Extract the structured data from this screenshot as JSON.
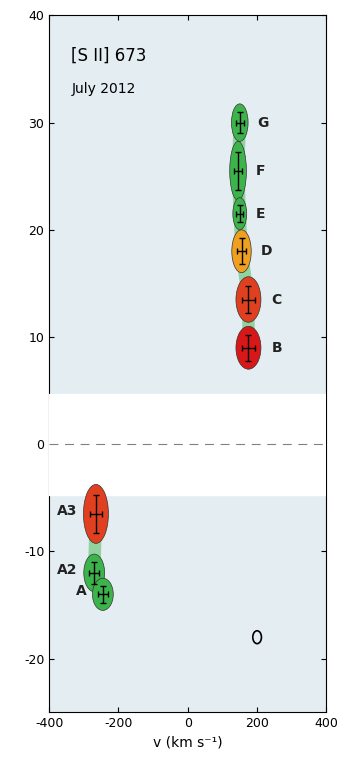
{
  "chart_data": {
    "type": "scatter",
    "title": "[S II] 673",
    "subtitle": "July 2012",
    "x_label": "v (km s⁻¹)",
    "xlim": [
      -400,
      400
    ],
    "xticks": [
      -400,
      -200,
      0,
      200,
      400
    ],
    "ylim": [
      -25,
      40
    ],
    "yticks": [
      -20,
      -10,
      0,
      10,
      20,
      30,
      40
    ],
    "grid": false,
    "masked_range": [
      -4.7,
      4.7
    ],
    "reference_line": 0,
    "beam": {
      "x": 200,
      "y": -18,
      "width": 25,
      "height": 1.2
    },
    "points": [
      {
        "label": "G",
        "x": 150,
        "y": 30,
        "x_err": 12,
        "y_err": 1.0,
        "color": "#3cb44b"
      },
      {
        "label": "F",
        "x": 145,
        "y": 25.5,
        "x_err": 12,
        "y_err": 1.8,
        "color": "#3cb44b"
      },
      {
        "label": "E",
        "x": 150,
        "y": 21.5,
        "x_err": 10,
        "y_err": 0.8,
        "color": "#3cb44b"
      },
      {
        "label": "D",
        "x": 155,
        "y": 18,
        "x_err": 14,
        "y_err": 1.2,
        "color": "#f0a020"
      },
      {
        "label": "C",
        "x": 175,
        "y": 13.5,
        "x_err": 18,
        "y_err": 1.3,
        "color": "#e04020"
      },
      {
        "label": "B",
        "x": 175,
        "y": 9,
        "x_err": 18,
        "y_err": 1.2,
        "color": "#d81818"
      },
      {
        "label": "A3",
        "x": -265,
        "y": -6.5,
        "x_err": 18,
        "y_err": 1.8,
        "color": "#e04020"
      },
      {
        "label": "A2",
        "x": -270,
        "y": -12,
        "x_err": 15,
        "y_err": 1.0,
        "color": "#3cb44b"
      },
      {
        "label": "A",
        "x": -245,
        "y": -14,
        "x_err": 15,
        "y_err": 0.8,
        "color": "#3cb44b"
      }
    ]
  }
}
